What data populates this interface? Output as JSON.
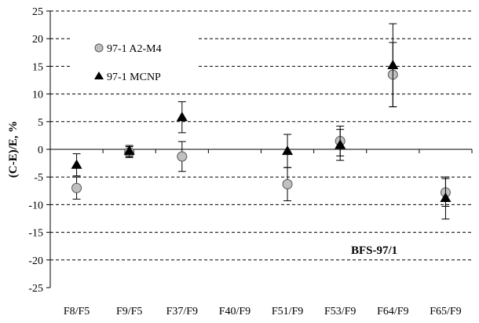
{
  "chart_data": {
    "type": "scatter",
    "title": "",
    "xlabel": "",
    "ylabel": "(C-E)/E, %",
    "annotation": "BFS-97/1",
    "categories": [
      "F8/F5",
      "F9/F5",
      "F37/F9",
      "F40/F9",
      "F51/F9",
      "F53/F9",
      "F64/F9",
      "F65/F9"
    ],
    "ylim": [
      -25,
      25
    ],
    "yticks": [
      -25,
      -20,
      -15,
      -10,
      -5,
      0,
      5,
      10,
      15,
      20,
      25
    ],
    "grid": "horizontal-dashed",
    "legend_position": "top-left",
    "series": [
      {
        "name": "97-1 A2-M4",
        "marker": "circle",
        "color": "#c0c0c0",
        "values": [
          -7.0,
          -0.5,
          -1.3,
          null,
          -6.3,
          1.5,
          13.5,
          -7.8
        ],
        "errors": [
          2.0,
          1.0,
          2.7,
          null,
          3.0,
          2.7,
          5.8,
          2.5
        ]
      },
      {
        "name": "97-1 MCNP",
        "marker": "triangle",
        "color": "#000000",
        "values": [
          -2.8,
          -0.3,
          5.8,
          null,
          -0.3,
          0.8,
          15.2,
          -8.8
        ],
        "errors": [
          2.0,
          1.0,
          2.8,
          null,
          3.0,
          2.8,
          7.5,
          3.8
        ]
      }
    ]
  }
}
